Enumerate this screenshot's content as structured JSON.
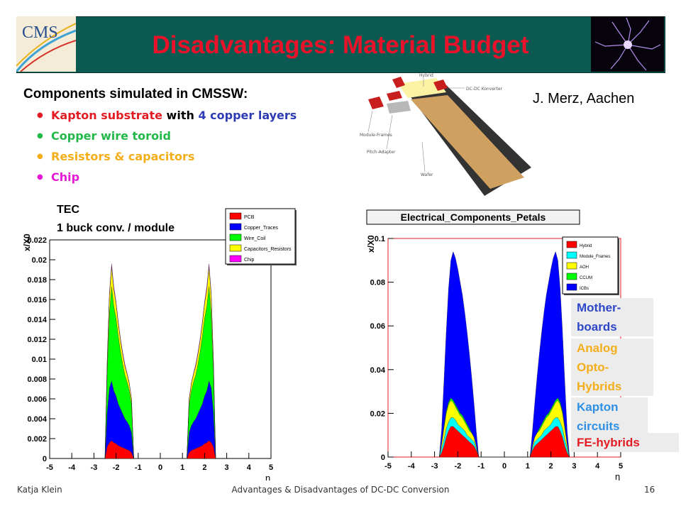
{
  "slide": {
    "title": "Disadvantages: Material Budget",
    "logo_text": "CMS",
    "components_heading": "Components simulated in CMSSW:",
    "bullets": [
      {
        "parts": [
          {
            "text": "Kapton substrate",
            "color": "#e31b23"
          },
          {
            "text": " with ",
            "color": "#000000"
          },
          {
            "text": "4 copper layers",
            "color": "#2e3cb4"
          }
        ]
      },
      {
        "parts": [
          {
            "text": "Copper wire toroid",
            "color": "#22b84a"
          }
        ]
      },
      {
        "parts": [
          {
            "text": "Resistors & capacitors",
            "color": "#f3ae1a"
          }
        ]
      },
      {
        "parts": [
          {
            "text": "Chip",
            "color": "#e619d4"
          }
        ]
      }
    ],
    "author": "J. Merz, Aachen",
    "module_labels": [
      "Hybrid",
      "DC-DC Konverter",
      "Module-Frames",
      "Pitch-Adapter",
      "Wafer"
    ],
    "footer": {
      "left": "Katja Klein",
      "center": "Advantages & Disadvantages of DC-DC Conversion",
      "page": "16"
    },
    "left_chart_note": [
      "TEC",
      "1 buck conv. / module"
    ],
    "overlay_labels": [
      {
        "key": "mother",
        "text": "Mother-\nboards",
        "color": "#2e47c8"
      },
      {
        "key": "aoh",
        "text": "Analog\nOpto-\nHybrids",
        "color": "#f3ae1a"
      },
      {
        "key": "kapton",
        "text": "Kapton\ncircuits",
        "color": "#2e8fe6"
      },
      {
        "key": "fe",
        "text": "FE-hybrids",
        "color": "#e31b23"
      }
    ]
  },
  "chart_data": [
    {
      "type": "area",
      "stacked": true,
      "xlabel": "η",
      "ylabel": "x/X0",
      "xlim": [
        -5,
        5
      ],
      "ylim": [
        0,
        0.022
      ],
      "x_ticks": [
        "-5",
        "-4",
        "-3",
        "-2",
        "-1",
        "0",
        "1",
        "2",
        "3",
        "4",
        "5"
      ],
      "y_ticks": [
        "0",
        "0.002",
        "0.004",
        "0.006",
        "0.008",
        "0.01",
        "0.012",
        "0.014",
        "0.016",
        "0.018",
        "0.02",
        "0.022"
      ],
      "legend_position": "top-right",
      "x": [
        -2.5,
        -2.4,
        -2.3,
        -2.2,
        -2.1,
        -2.0,
        -1.9,
        -1.8,
        -1.7,
        -1.6,
        -1.5,
        -1.4,
        -1.3,
        -1.2,
        1.2,
        1.3,
        1.4,
        1.5,
        1.6,
        1.7,
        1.8,
        1.9,
        2.0,
        2.1,
        2.2,
        2.3,
        2.4,
        2.5
      ],
      "series": [
        {
          "name": "PCB",
          "color": "#ff0000",
          "values": [
            0.0,
            0.0012,
            0.0016,
            0.0018,
            0.0016,
            0.0015,
            0.0013,
            0.0012,
            0.0011,
            0.001,
            0.0009,
            0.0008,
            0.0006,
            0.0,
            0.0,
            0.0006,
            0.0008,
            0.0009,
            0.001,
            0.0011,
            0.0012,
            0.0013,
            0.0015,
            0.0016,
            0.0018,
            0.0016,
            0.0012,
            0.0
          ]
        },
        {
          "name": "Copper_Traces",
          "color": "#0000ff",
          "values": [
            0.0,
            0.0035,
            0.0055,
            0.006,
            0.0052,
            0.0048,
            0.0042,
            0.0038,
            0.0034,
            0.003,
            0.0028,
            0.0025,
            0.002,
            0.0,
            0.0,
            0.002,
            0.0025,
            0.0028,
            0.003,
            0.0034,
            0.0038,
            0.0042,
            0.0048,
            0.0052,
            0.006,
            0.0055,
            0.0035,
            0.0
          ]
        },
        {
          "name": "Wire_Coil",
          "color": "#00ff00",
          "values": [
            0.0,
            0.004,
            0.0075,
            0.0095,
            0.0085,
            0.0078,
            0.0068,
            0.0058,
            0.005,
            0.0044,
            0.004,
            0.0035,
            0.0028,
            0.0,
            0.0,
            0.0028,
            0.0035,
            0.004,
            0.0044,
            0.005,
            0.0058,
            0.0068,
            0.0078,
            0.0085,
            0.0095,
            0.0075,
            0.004,
            0.0
          ]
        },
        {
          "name": "Capacitors_Resistors",
          "color": "#ffff00",
          "values": [
            0.0,
            0.001,
            0.0018,
            0.002,
            0.0017,
            0.0015,
            0.0013,
            0.0011,
            0.001,
            0.0009,
            0.0008,
            0.0007,
            0.0005,
            0.0,
            0.0,
            0.0005,
            0.0007,
            0.0008,
            0.0009,
            0.001,
            0.0011,
            0.0013,
            0.0015,
            0.0017,
            0.002,
            0.0018,
            0.001,
            0.0
          ]
        },
        {
          "name": "Chip",
          "color": "#ff00ff",
          "values": [
            0.0,
            0.0002,
            0.0003,
            0.0003,
            0.0003,
            0.0002,
            0.0002,
            0.0002,
            0.0002,
            0.0002,
            0.0001,
            0.0001,
            0.0001,
            0.0,
            0.0,
            0.0001,
            0.0001,
            0.0001,
            0.0002,
            0.0002,
            0.0002,
            0.0002,
            0.0002,
            0.0003,
            0.0003,
            0.0003,
            0.0002,
            0.0
          ]
        }
      ]
    },
    {
      "type": "area",
      "stacked": true,
      "title": "Electrical_Components_Petals",
      "xlabel": "η",
      "ylabel": "x/X0",
      "xlim": [
        -5,
        5
      ],
      "ylim": [
        0,
        0.1
      ],
      "x_ticks": [
        "-5",
        "-4",
        "-3",
        "-2",
        "-1",
        "0",
        "1",
        "2",
        "3",
        "4",
        "5"
      ],
      "y_ticks": [
        "0",
        "0.02",
        "0.04",
        "0.06",
        "0.08",
        "0.1"
      ],
      "legend_position": "top-right",
      "x": [
        -2.8,
        -2.7,
        -2.6,
        -2.5,
        -2.4,
        -2.3,
        -2.2,
        -2.1,
        -2.0,
        -1.9,
        -1.8,
        -1.7,
        -1.6,
        -1.5,
        -1.4,
        -1.3,
        -1.2,
        -1.1,
        1.1,
        1.2,
        1.3,
        1.4,
        1.5,
        1.6,
        1.7,
        1.8,
        1.9,
        2.0,
        2.1,
        2.2,
        2.3,
        2.4,
        2.5,
        2.6,
        2.7,
        2.8
      ],
      "series": [
        {
          "name": "Hybrid",
          "color": "#ff0000",
          "values": [
            0.0,
            0.002,
            0.005,
            0.009,
            0.012,
            0.014,
            0.014,
            0.013,
            0.012,
            0.011,
            0.01,
            0.009,
            0.008,
            0.007,
            0.006,
            0.005,
            0.003,
            0.0,
            0.0,
            0.003,
            0.005,
            0.006,
            0.007,
            0.008,
            0.009,
            0.01,
            0.011,
            0.012,
            0.013,
            0.014,
            0.014,
            0.012,
            0.009,
            0.005,
            0.002,
            0.0
          ]
        },
        {
          "name": "Module_Frames",
          "color": "#00ffff",
          "values": [
            0.0,
            0.002,
            0.003,
            0.004,
            0.004,
            0.004,
            0.004,
            0.004,
            0.003,
            0.003,
            0.003,
            0.003,
            0.002,
            0.002,
            0.002,
            0.002,
            0.001,
            0.0,
            0.0,
            0.001,
            0.002,
            0.002,
            0.002,
            0.002,
            0.003,
            0.003,
            0.003,
            0.003,
            0.004,
            0.004,
            0.004,
            0.004,
            0.004,
            0.003,
            0.002,
            0.0
          ]
        },
        {
          "name": "AOH",
          "color": "#ffff00",
          "values": [
            0.0,
            0.002,
            0.005,
            0.007,
            0.008,
            0.008,
            0.007,
            0.006,
            0.006,
            0.005,
            0.005,
            0.004,
            0.004,
            0.003,
            0.003,
            0.002,
            0.001,
            0.0,
            0.0,
            0.001,
            0.002,
            0.003,
            0.003,
            0.004,
            0.004,
            0.005,
            0.005,
            0.006,
            0.006,
            0.007,
            0.008,
            0.008,
            0.007,
            0.005,
            0.002,
            0.0
          ]
        },
        {
          "name": "CCUM",
          "color": "#00ff00",
          "values": [
            0.0,
            0.0,
            0.001,
            0.001,
            0.001,
            0.001,
            0.001,
            0.001,
            0.001,
            0.001,
            0.001,
            0.001,
            0.001,
            0.001,
            0.0,
            0.0,
            0.0,
            0.0,
            0.0,
            0.0,
            0.0,
            0.0,
            0.001,
            0.001,
            0.001,
            0.001,
            0.001,
            0.001,
            0.001,
            0.001,
            0.001,
            0.001,
            0.001,
            0.001,
            0.0,
            0.0
          ]
        },
        {
          "name": "ICBs",
          "color": "#0000ff",
          "values": [
            0.0,
            0.006,
            0.02,
            0.036,
            0.052,
            0.063,
            0.068,
            0.067,
            0.064,
            0.06,
            0.055,
            0.049,
            0.042,
            0.034,
            0.025,
            0.015,
            0.006,
            0.0,
            0.0,
            0.006,
            0.015,
            0.025,
            0.034,
            0.042,
            0.049,
            0.055,
            0.06,
            0.064,
            0.067,
            0.068,
            0.063,
            0.052,
            0.036,
            0.02,
            0.006,
            0.0
          ]
        }
      ]
    }
  ]
}
